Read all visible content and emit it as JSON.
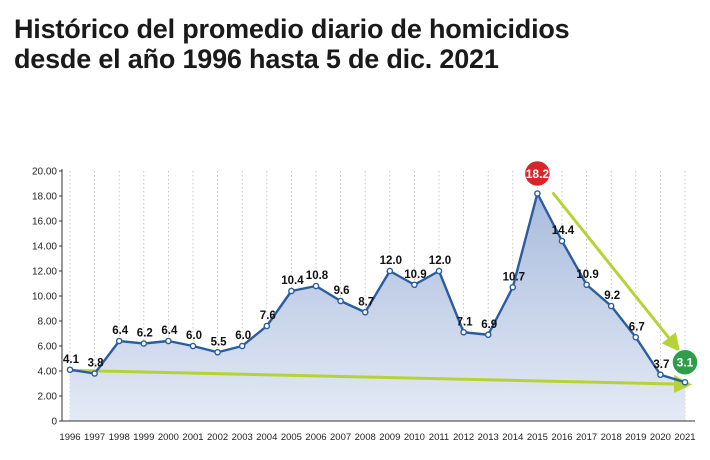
{
  "title": {
    "line1": "Histórico del promedio diario de homicidios",
    "line2": "desde el año 1996 hasta 5 de dic. 2021"
  },
  "chart_data": {
    "type": "area",
    "title": "Histórico del promedio diario de homicidios desde el año 1996 hasta 5 de dic. 2021",
    "xlabel": "",
    "ylabel": "",
    "ylim": [
      0,
      20
    ],
    "yticks": [
      "0",
      "2.00",
      "4.00",
      "6.00",
      "8.00",
      "10.00",
      "12.00",
      "14.00",
      "16.00",
      "18.00",
      "20.00"
    ],
    "grid": "vertical dotted",
    "categories": [
      "1996",
      "1997",
      "1998",
      "1999",
      "2000",
      "2001",
      "2002",
      "2003",
      "2004",
      "2005",
      "2006",
      "2007",
      "2008",
      "2009",
      "2010",
      "2011",
      "2012",
      "2013",
      "2014",
      "2015",
      "2016",
      "2017",
      "2018",
      "2019",
      "2020",
      "2021"
    ],
    "series": [
      {
        "values": [
          4.1,
          3.8,
          6.4,
          6.2,
          6.4,
          6.0,
          5.5,
          6.0,
          7.6,
          10.4,
          10.8,
          9.6,
          8.7,
          12.0,
          10.9,
          12.0,
          7.1,
          6.9,
          10.7,
          18.2,
          14.4,
          10.9,
          9.2,
          6.7,
          3.7,
          3.1
        ],
        "labels": [
          "4.1",
          "3.8",
          "6.4",
          "6.2",
          "6.4",
          "6.0",
          "5.5",
          "6.0",
          "7.6",
          "10.4",
          "10.8",
          "9.6",
          "8.7",
          "12.0",
          "10.9",
          "12.0",
          "7.1",
          "6.9",
          "10.7",
          "18.2",
          "14.4",
          "10.9",
          "9.2",
          "6.7",
          "3.7",
          "3.1"
        ]
      }
    ],
    "highlights": [
      {
        "category": "2015",
        "label": "18.2",
        "color": "#d6262b"
      },
      {
        "category": "2021",
        "label": "3.1",
        "color": "#2e9e48"
      }
    ],
    "trend_arrows": [
      {
        "from": "1996",
        "to": "2021",
        "color": "#b5d334"
      },
      {
        "from": "2015",
        "to": "2020",
        "color": "#b5d334"
      }
    ],
    "colors": {
      "line": "#2a5d9f",
      "area_top": "#a9bcdd",
      "area_bottom": "#e4eaf5"
    }
  }
}
